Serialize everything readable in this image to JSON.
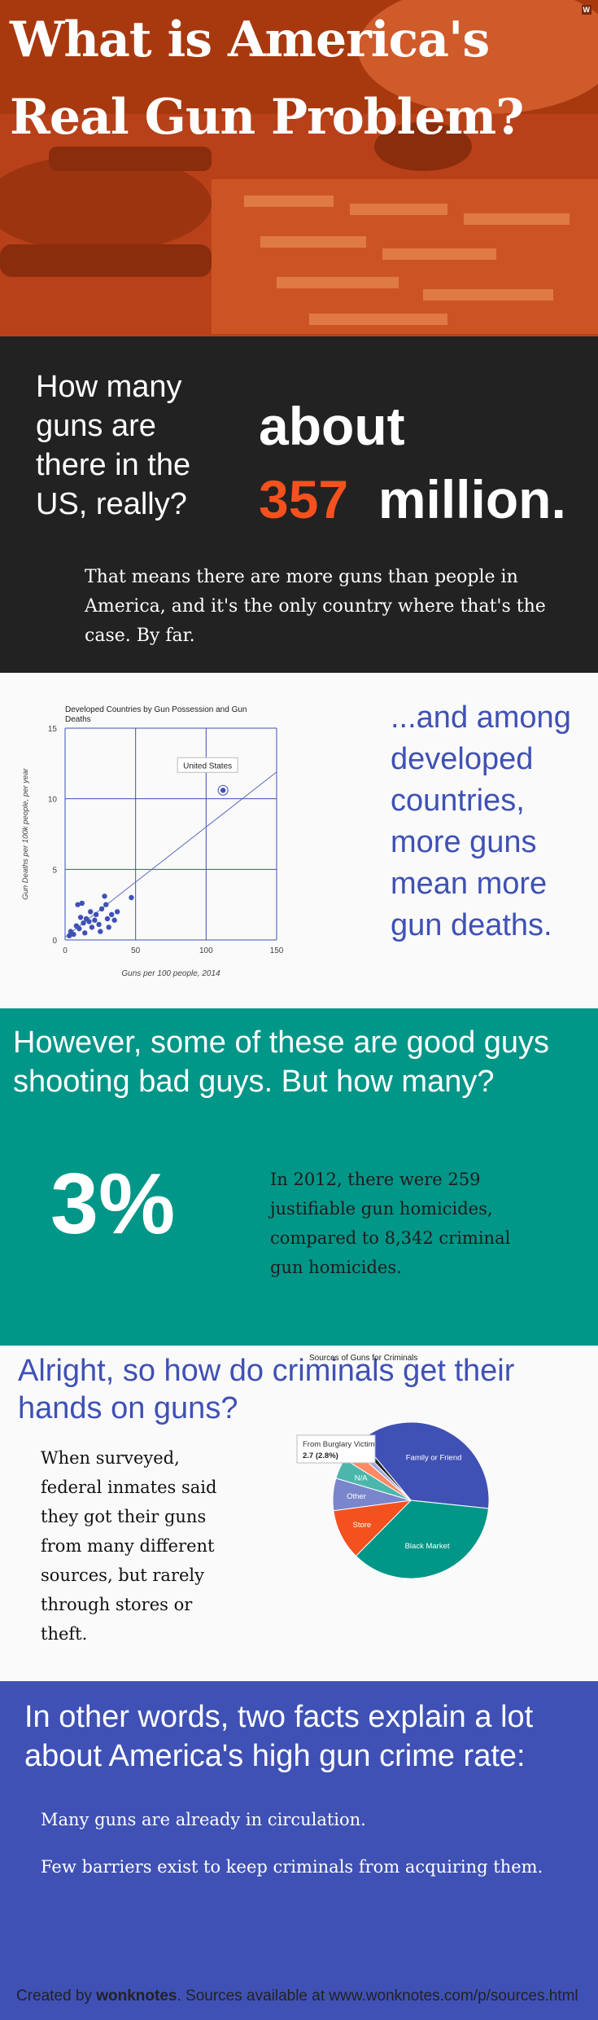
{
  "hero": {
    "title_line1": "What is America's",
    "title_line2": "Real Gun Problem?",
    "badge": "W"
  },
  "count": {
    "question": "How many guns are there in the US, really?",
    "about": "about",
    "number": "357",
    "unit": "million.",
    "note": "That means there are more guns than people in America, and it's the only country where that's the case. By far."
  },
  "developed": {
    "statement": "...and among developed countries, more guns mean more gun deaths."
  },
  "chart_data": [
    {
      "type": "scatter",
      "title": "Developed Countries by Gun Possession and Gun Deaths",
      "xlabel": "Guns per 100 people, 2014",
      "ylabel": "Gun Deaths per 100k people, per year",
      "xlim": [
        0,
        150
      ],
      "ylim": [
        0,
        15
      ],
      "xticks": [
        "0",
        "50",
        "100",
        "150"
      ],
      "yticks": [
        "0",
        "5",
        "10",
        "15"
      ],
      "grid": true,
      "trendline": {
        "x": [
          0,
          150
        ],
        "y": [
          0.2,
          11.9
        ]
      },
      "annotation": "United States",
      "points": [
        {
          "x": 112,
          "y": 10.6,
          "label": "United States"
        },
        {
          "x": 3,
          "y": 0.3
        },
        {
          "x": 4,
          "y": 0.6
        },
        {
          "x": 6,
          "y": 0.4
        },
        {
          "x": 8,
          "y": 1.0
        },
        {
          "x": 9,
          "y": 2.5
        },
        {
          "x": 10,
          "y": 0.8
        },
        {
          "x": 11,
          "y": 1.6
        },
        {
          "x": 12,
          "y": 2.6
        },
        {
          "x": 13,
          "y": 1.2
        },
        {
          "x": 14,
          "y": 0.5
        },
        {
          "x": 15,
          "y": 1.5
        },
        {
          "x": 17,
          "y": 1.3
        },
        {
          "x": 18,
          "y": 2.0
        },
        {
          "x": 19,
          "y": 0.9
        },
        {
          "x": 21,
          "y": 1.4
        },
        {
          "x": 22,
          "y": 1.8
        },
        {
          "x": 24,
          "y": 1.1
        },
        {
          "x": 25,
          "y": 0.6
        },
        {
          "x": 26,
          "y": 2.2
        },
        {
          "x": 28,
          "y": 3.1
        },
        {
          "x": 29,
          "y": 2.5
        },
        {
          "x": 30,
          "y": 1.5
        },
        {
          "x": 31,
          "y": 0.9
        },
        {
          "x": 33,
          "y": 1.8
        },
        {
          "x": 35,
          "y": 1.4
        },
        {
          "x": 37,
          "y": 2.0
        },
        {
          "x": 47,
          "y": 3.0
        }
      ]
    },
    {
      "type": "pie",
      "title": "Sources of Guns for Criminals",
      "tooltip": {
        "title": "From Burglary Victim",
        "value": "2.7 (2.8%)"
      },
      "slices": [
        {
          "label": "Family or Friend",
          "value": 39.5,
          "color": "#3f51b5"
        },
        {
          "label": "Black Market",
          "value": 37.5,
          "color": "#009688"
        },
        {
          "label": "Store",
          "value": 11.0,
          "color": "#f4511e"
        },
        {
          "label": "Other",
          "value": 7.0,
          "color": "#7986cb"
        },
        {
          "label": "N/A",
          "value": 4.5,
          "color": "#4db6ac"
        },
        {
          "label": "",
          "value": 2.8,
          "color": "#ff8a65"
        },
        {
          "label": "",
          "value": 1.4,
          "color": "#9fa8da"
        },
        {
          "label": "",
          "value": 1.2,
          "color": "#212121"
        }
      ]
    }
  ],
  "justifiable": {
    "heading": "However, some of these are good guys shooting bad guys. But how many?",
    "percent": "3%",
    "text": "In 2012, there were 259 justifiable gun homicides, compared to 8,342 criminal gun homicides."
  },
  "criminals": {
    "heading": "Alright, so how do criminals get their hands on guns?",
    "text": "When surveyed, federal inmates said they got their guns from many different sources, but rarely through stores or theft."
  },
  "conclusion": {
    "heading": "In other words, two facts explain a lot about America's high gun crime rate:",
    "fact1": "Many guns are already in circulation.",
    "fact2": "Few barriers exist to keep criminals from acquiring them.",
    "footer_prefix": "Created by",
    "footer_brand": "wonknotes",
    "footer_suffix": ". Sources available at www.wonknotes.com/p/sources.html"
  },
  "colors": {
    "orange": "#f4511e",
    "indigo": "#3f51b5",
    "teal": "#009688",
    "dark": "#222222"
  }
}
